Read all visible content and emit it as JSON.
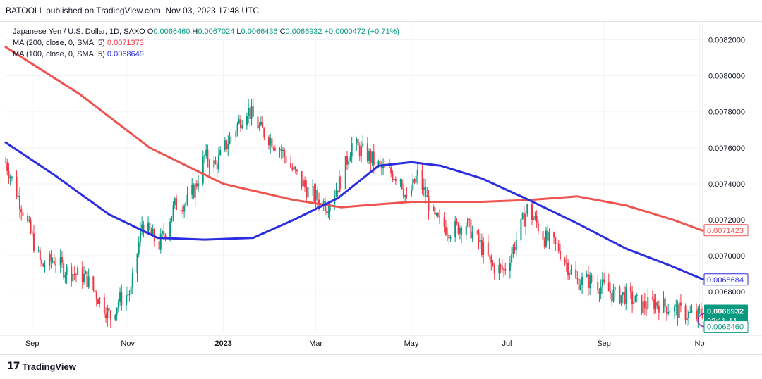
{
  "header": {
    "publisher": "BATOOLL published on TradingView.com, Nov 03, 2023 17:48 UTC"
  },
  "legend": {
    "symbol": "Japanese Yen / U.S. Dollar, 1D, SAXO",
    "ohlc": [
      {
        "k": "O",
        "v": "0.0066460"
      },
      {
        "k": "H",
        "v": "0.0067024"
      },
      {
        "k": "L",
        "v": "0.0066436"
      },
      {
        "k": "C",
        "v": "0.0066932"
      }
    ],
    "change": "+0.0000472 (+0.71%)",
    "ma200_label": "MA (200, close, 0, SMA, 5)",
    "ma200_value": "0.0071373",
    "ma100_label": "MA (100, close, 0, SMA, 5)",
    "ma100_value": "0.0068649"
  },
  "footer": {
    "brand": "TradingView"
  },
  "colors": {
    "up": "#089981",
    "down": "#f23645",
    "ma200": "#ef5350",
    "ma100": "#2a2ee0",
    "grid": "#f0f3fa",
    "last_price": "#089981",
    "open_tag_border": "#089981"
  },
  "chart_data": {
    "type": "candlestick",
    "title": "Japanese Yen / U.S. Dollar, 1D, SAXO",
    "y_ticks": [
      "0.0082000",
      "0.0080000",
      "0.0078000",
      "0.0076000",
      "0.0074000",
      "0.0072000",
      "0.0070000",
      "0.0068000"
    ],
    "ylim": [
      0.00657,
      0.0083
    ],
    "x_ticks": [
      "Sep",
      "Nov",
      "2023",
      "Mar",
      "May",
      "Jul",
      "Sep",
      "No"
    ],
    "x_range": [
      "2022-08-15",
      "2023-11-03"
    ],
    "price_tags": {
      "last": {
        "value": "0.0066932",
        "countdown": "03:11:44",
        "y": 0.0066932
      },
      "open": {
        "value": "0.0066460",
        "y": 0.006646
      },
      "ma200": {
        "value": "0.0071423",
        "y": 0.0071423
      },
      "ma100": {
        "value": "0.0068684",
        "y": 0.0068684
      }
    },
    "close_path": [
      [
        "2022-08-15",
        0.00752
      ],
      [
        "2022-08-25",
        0.00728
      ],
      [
        "2022-09-07",
        0.00694
      ],
      [
        "2022-09-15",
        0.00698
      ],
      [
        "2022-09-22",
        0.00692
      ],
      [
        "2022-10-05",
        0.00688
      ],
      [
        "2022-10-21",
        0.00666
      ],
      [
        "2022-10-26",
        0.00675
      ],
      [
        "2022-11-03",
        0.0068
      ],
      [
        "2022-11-10",
        0.00718
      ],
      [
        "2022-11-21",
        0.00706
      ],
      [
        "2022-12-01",
        0.00728
      ],
      [
        "2022-12-09",
        0.0073
      ],
      [
        "2022-12-14",
        0.00738
      ],
      [
        "2022-12-20",
        0.00755
      ],
      [
        "2022-12-27",
        0.0075
      ],
      [
        "2023-01-03",
        0.00762
      ],
      [
        "2023-01-16",
        0.00782
      ],
      [
        "2023-01-25",
        0.0077
      ],
      [
        "2023-02-06",
        0.0076
      ],
      [
        "2023-02-14",
        0.00748
      ],
      [
        "2023-02-24",
        0.00736
      ],
      [
        "2023-03-08",
        0.00728
      ],
      [
        "2023-03-17",
        0.00742
      ],
      [
        "2023-03-24",
        0.00762
      ],
      [
        "2023-04-03",
        0.00756
      ],
      [
        "2023-04-12",
        0.00748
      ],
      [
        "2023-04-24",
        0.00744
      ],
      [
        "2023-04-28",
        0.0073
      ],
      [
        "2023-05-05",
        0.00745
      ],
      [
        "2023-05-16",
        0.0072
      ],
      [
        "2023-05-26",
        0.00714
      ],
      [
        "2023-06-05",
        0.00718
      ],
      [
        "2023-06-14",
        0.00706
      ],
      [
        "2023-06-22",
        0.00694
      ],
      [
        "2023-06-29",
        0.00692
      ],
      [
        "2023-07-05",
        0.00704
      ],
      [
        "2023-07-14",
        0.00726
      ],
      [
        "2023-07-20",
        0.00718
      ],
      [
        "2023-07-25",
        0.0071
      ],
      [
        "2023-08-03",
        0.00704
      ],
      [
        "2023-08-14",
        0.00686
      ],
      [
        "2023-08-25",
        0.00686
      ],
      [
        "2023-09-08",
        0.00678
      ],
      [
        "2023-09-15",
        0.00678
      ],
      [
        "2023-09-25",
        0.00672
      ],
      [
        "2023-10-04",
        0.00674
      ],
      [
        "2023-10-16",
        0.0067
      ],
      [
        "2023-10-30",
        0.00666
      ],
      [
        "2023-11-03",
        0.0066932
      ]
    ],
    "ma200": [
      [
        "2022-08-15",
        0.00816
      ],
      [
        "2022-10-01",
        0.0079
      ],
      [
        "2022-11-15",
        0.0076
      ],
      [
        "2023-01-01",
        0.0074
      ],
      [
        "2023-02-15",
        0.00731
      ],
      [
        "2023-03-17",
        0.00727
      ],
      [
        "2023-05-01",
        0.0073
      ],
      [
        "2023-06-15",
        0.0073
      ],
      [
        "2023-07-15",
        0.00731
      ],
      [
        "2023-08-15",
        0.00733
      ],
      [
        "2023-09-15",
        0.00728
      ],
      [
        "2023-10-15",
        0.0072
      ],
      [
        "2023-11-03",
        0.00714
      ]
    ],
    "ma100": [
      [
        "2022-08-15",
        0.00763
      ],
      [
        "2022-09-15",
        0.00745
      ],
      [
        "2022-10-20",
        0.00723
      ],
      [
        "2022-11-20",
        0.0071
      ],
      [
        "2022-12-20",
        0.00709
      ],
      [
        "2023-01-20",
        0.0071
      ],
      [
        "2023-02-15",
        0.0072
      ],
      [
        "2023-03-15",
        0.00732
      ],
      [
        "2023-04-10",
        0.0075
      ],
      [
        "2023-05-01",
        0.00752
      ],
      [
        "2023-05-20",
        0.0075
      ],
      [
        "2023-06-15",
        0.00743
      ],
      [
        "2023-07-15",
        0.00731
      ],
      [
        "2023-08-15",
        0.00718
      ],
      [
        "2023-09-15",
        0.00704
      ],
      [
        "2023-10-15",
        0.00694
      ],
      [
        "2023-11-03",
        0.00687
      ]
    ]
  }
}
